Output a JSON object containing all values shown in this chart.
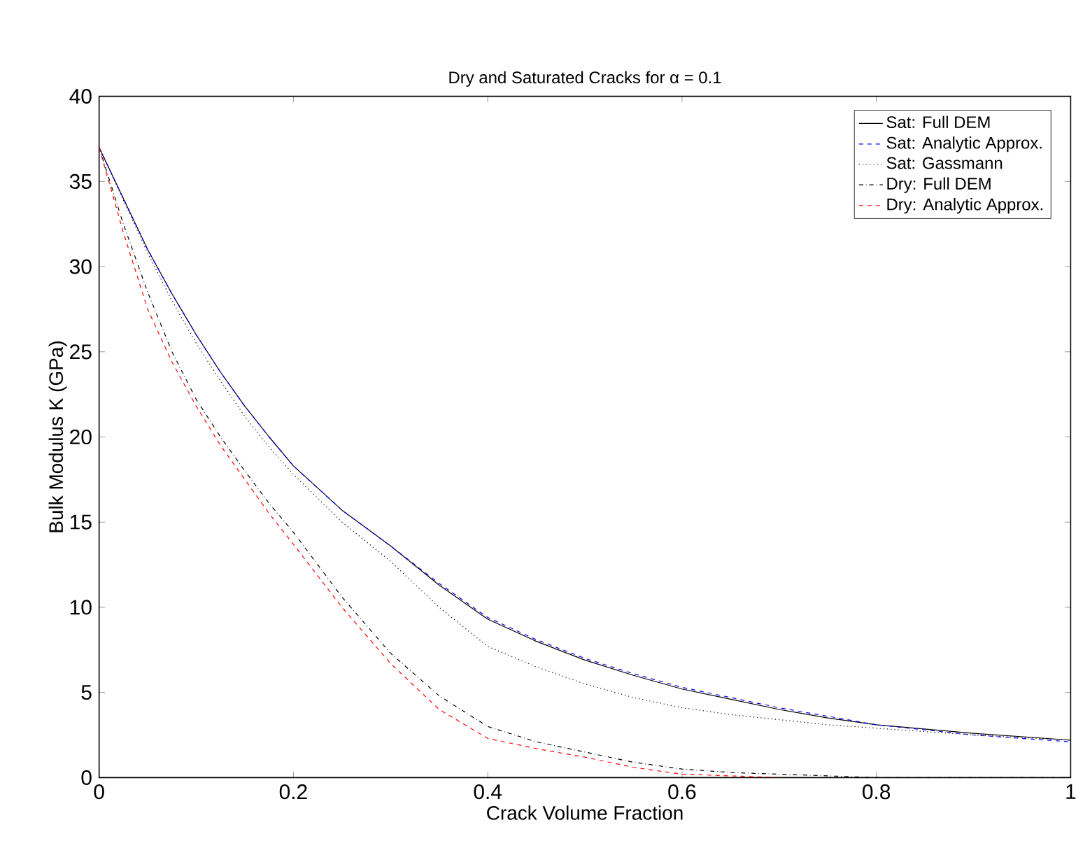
{
  "chart_data": {
    "type": "line",
    "title": "Dry and Saturated Cracks for α = 0.1",
    "xlabel": "Crack Volume Fraction",
    "ylabel": "Bulk Modulus K (GPa)",
    "x": [
      0,
      0.025,
      0.05,
      0.075,
      0.1,
      0.125,
      0.15,
      0.175,
      0.2,
      0.25,
      0.3,
      0.35,
      0.4,
      0.45,
      0.5,
      0.55,
      0.6,
      0.65,
      0.7,
      0.75,
      0.8,
      0.9,
      1.0
    ],
    "series": [
      {
        "name": "Sat: Full DEM",
        "color": "#000000",
        "line_style": "solid",
        "values": [
          37,
          34,
          31,
          28.4,
          26,
          23.8,
          21.8,
          20,
          18.3,
          15.7,
          13.6,
          11.3,
          9.3,
          8.0,
          6.9,
          6.0,
          5.2,
          4.6,
          4.0,
          3.5,
          3.1,
          2.6,
          2.2
        ]
      },
      {
        "name": "Sat: Analytic Approx.",
        "color": "#0000ff",
        "line_style": "dashed",
        "values": [
          37,
          34,
          31,
          28.4,
          26,
          23.8,
          21.8,
          20,
          18.3,
          15.7,
          13.6,
          11.4,
          9.4,
          8.1,
          7.0,
          6.1,
          5.3,
          4.7,
          4.1,
          3.6,
          3.1,
          2.5,
          2.1
        ]
      },
      {
        "name": "Sat: Gassmann",
        "color": "#000000",
        "line_style": "dotted",
        "values": [
          37,
          33.9,
          30.8,
          28,
          25.5,
          23.3,
          21.2,
          19.4,
          17.8,
          15,
          12.7,
          10,
          7.7,
          6.5,
          5.5,
          4.7,
          4.1,
          3.7,
          3.4,
          3.1,
          2.9,
          2.5,
          2.2
        ]
      },
      {
        "name": "Dry: Full DEM",
        "color": "#000000",
        "line_style": "dashdot",
        "values": [
          37,
          32.5,
          28.5,
          25,
          22.2,
          20,
          18,
          16.1,
          14.4,
          10.6,
          7.3,
          4.8,
          3.0,
          2.1,
          1.5,
          0.9,
          0.5,
          0.3,
          0.2,
          0.1,
          0,
          0,
          0
        ]
      },
      {
        "name": "Dry: Analytic Approx.",
        "color": "#ff0000",
        "line_style": "dashed",
        "values": [
          37,
          32,
          27.5,
          24.4,
          21.8,
          19.5,
          17.5,
          15.5,
          13.7,
          10,
          6.7,
          4.0,
          2.3,
          1.7,
          1.2,
          0.6,
          0.2,
          0.1,
          0,
          null,
          null,
          null,
          null
        ]
      }
    ],
    "xlim": [
      0,
      1
    ],
    "ylim": [
      0,
      40
    ],
    "xticks": [
      0,
      0.2,
      0.4,
      0.6,
      0.8,
      1
    ],
    "yticks": [
      0,
      5,
      10,
      15,
      20,
      25,
      30,
      35,
      40
    ],
    "grid": false,
    "legend": "top right"
  }
}
